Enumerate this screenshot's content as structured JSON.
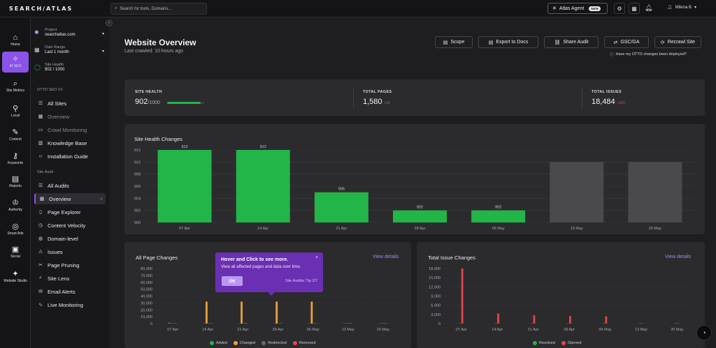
{
  "topbar": {
    "logo": "SEARCH/ATLAS",
    "search_placeholder": "Search for tools, Domains...",
    "atlas_agent": "Atlas Agent",
    "new_badge": "NEW",
    "user_name": "Milena B"
  },
  "rail": [
    {
      "label": "Home",
      "icon": "home-icon"
    },
    {
      "label": "AI SEO",
      "icon": "sparkle-icon"
    },
    {
      "label": "Site Metrics",
      "icon": "magnifier-icon"
    },
    {
      "label": "Local",
      "icon": "location-pin-icon"
    },
    {
      "label": "Content",
      "icon": "feather-icon"
    },
    {
      "label": "Keywords",
      "icon": "key-search-icon"
    },
    {
      "label": "Reports",
      "icon": "report-icon"
    },
    {
      "label": "Authority",
      "icon": "crown-icon"
    },
    {
      "label": "Smart Ads",
      "icon": "target-icon"
    },
    {
      "label": "Social",
      "icon": "social-icon"
    },
    {
      "label": "Website Studio",
      "icon": "wand-icon"
    }
  ],
  "sidebar": {
    "project_label": "Project",
    "project_value": "searchatlas.com",
    "date_label": "Date Range",
    "date_value": "Last 1 month",
    "health_label": "Site Health",
    "health_value": "902 / 1000",
    "section_otto": "OTTO SEO V3",
    "otto_items": [
      "All Sites",
      "Overview",
      "Crawl Monitoring",
      "Knowledge Base",
      "Installation Guide"
    ],
    "section_audit": "Site Audit",
    "audit_items": [
      "All Audits",
      "Overview",
      "Page Explorer",
      "Content Velocity",
      "Domain-level",
      "Issues",
      "Page Pruning",
      "Site Lens",
      "Email Alerts",
      "Live Monitoring"
    ]
  },
  "page": {
    "title": "Website Overview",
    "subtitle": "Last crawled: 10 hours ago",
    "buttons": [
      "Scope",
      "Export to Docs",
      "Share Audit",
      "GSC/GA",
      "Recrawl Site"
    ],
    "otto_question": "Have my OTTO changes been deployed?"
  },
  "kpis": {
    "site_health_label": "SITE HEALTH",
    "site_health_value": "902",
    "site_health_max": "/1000",
    "site_health_fraction": 0.902,
    "total_pages_label": "TOTAL PAGES",
    "total_pages_value": "1,580",
    "total_pages_delta": "+11",
    "total_issues_label": "TOTAL ISSUES",
    "total_issues_value": "18,484",
    "total_issues_delta": "+320"
  },
  "health_chart": {
    "title": "Site Health Changes",
    "chart_data": {
      "type": "bar",
      "categories": [
        "07 Apr",
        "14 Apr",
        "21 Apr",
        "28 Apr",
        "06 May",
        "13 May",
        "20 May"
      ],
      "values": [
        912,
        912,
        905,
        902,
        902,
        910,
        910
      ],
      "value_labels": [
        "912",
        "912",
        "905",
        "902",
        "902",
        "",
        ""
      ],
      "yticks": [
        912,
        910,
        908,
        906,
        904,
        902,
        900
      ],
      "ylim": [
        900,
        912
      ],
      "colors": [
        "#22b548",
        "#22b548",
        "#22b548",
        "#22b548",
        "#22b548",
        "#4a4a4e",
        "#4a4a4e"
      ]
    }
  },
  "page_changes": {
    "title": "All Page Changes",
    "view_details": "View details",
    "chart_data": {
      "type": "bar",
      "categories": [
        "07 Apr",
        "14 Apr",
        "21 Apr",
        "28 Apr",
        "06 May",
        "13 May",
        "20 May"
      ],
      "yticks": [
        "80,000",
        "70,000",
        "60,000",
        "50,000",
        "40,000",
        "30,000",
        "20,000",
        "10,000",
        "0"
      ],
      "ylim": [
        0,
        80000
      ],
      "series": [
        {
          "name": "Added",
          "color": "#22b548",
          "values": [
            1500,
            0,
            0,
            0,
            0,
            0,
            0
          ]
        },
        {
          "name": "Changed",
          "color": "#e8a33a",
          "values": [
            0,
            32000,
            32000,
            32000,
            32000,
            0,
            0
          ]
        },
        {
          "name": "Redirected",
          "color": "#6a6a70",
          "values": [
            0,
            0,
            0,
            0,
            0,
            0,
            0
          ]
        },
        {
          "name": "Removed",
          "color": "#e0464c",
          "values": [
            0,
            0,
            1200,
            0,
            0,
            0,
            0
          ]
        }
      ],
      "legend": [
        "Added",
        "Changed",
        "Redirected",
        "Removed"
      ]
    }
  },
  "issue_changes": {
    "title": "Total Issue Changes",
    "view_details": "View details",
    "chart_data": {
      "type": "bar",
      "categories": [
        "07 Apr",
        "14 Apr",
        "21 Apr",
        "28 Apr",
        "06 May",
        "13 May",
        "20 May"
      ],
      "yticks": [
        "18,000",
        "15,000",
        "12,000",
        "9,000",
        "6,000",
        "3,000",
        "0"
      ],
      "ylim": [
        0,
        18000
      ],
      "series": [
        {
          "name": "Resolved",
          "color": "#22b548",
          "values": [
            0,
            0,
            0,
            0,
            0,
            0,
            0
          ]
        },
        {
          "name": "Opened",
          "color": "#e0464c",
          "values": [
            18000,
            3300,
            2700,
            2500,
            2400,
            0,
            0
          ]
        }
      ],
      "legend": [
        "Resolved",
        "Opened"
      ]
    }
  },
  "tooltip": {
    "title": "Hover and Click to see more.",
    "body": "View all affected pages and data over time.",
    "ok": "OK",
    "step": "Site Auditor Tip 2/7"
  },
  "colors": {
    "accent": "#8b54e8",
    "green": "#22b548",
    "red": "#e0464c",
    "orange": "#e8a33a"
  }
}
